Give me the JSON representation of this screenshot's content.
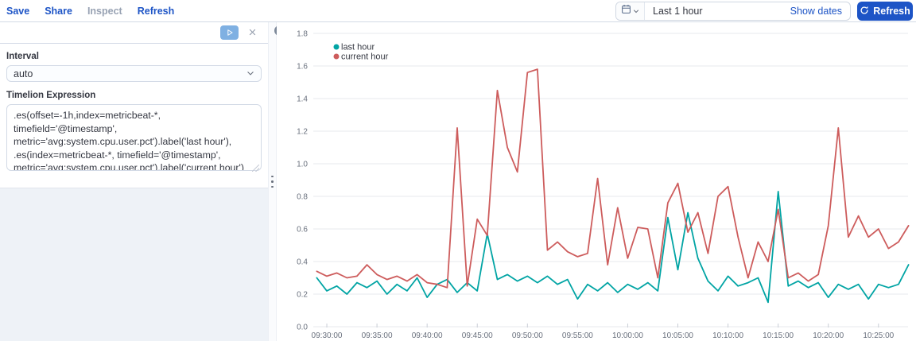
{
  "top_bar": {
    "menu": [
      {
        "label": "Save"
      },
      {
        "label": "Share"
      },
      {
        "label": "Inspect"
      },
      {
        "label": "Refresh"
      }
    ],
    "time_picker": {
      "selected": "Last 1 hour",
      "show_dates_label": "Show dates",
      "refresh_label": "Refresh"
    }
  },
  "editor_panel": {
    "interval_label": "Interval",
    "interval_value": "auto",
    "expression_label": "Timelion Expression",
    "expression_value": ".es(offset=-1h,index=metricbeat-*, timefield='@timestamp',\nmetric='avg:system.cpu.user.pct').label('last hour'),\n.es(index=metricbeat-*, timefield='@timestamp',\nmetric='avg:system.cpu.user.pct').label('current hour')"
  },
  "colors": {
    "accent_blue": "#1d54c6",
    "series_teal": "#01a4a4",
    "series_red": "#cd5c5c",
    "grid": "#e7e9ed"
  },
  "chart_data": {
    "type": "line",
    "title": "",
    "xlabel": "",
    "ylabel": "",
    "ylim": [
      0,
      1.8
    ],
    "y_ticks": [
      0.0,
      0.2,
      0.4,
      0.6,
      0.8,
      1.0,
      1.2,
      1.4,
      1.6,
      1.8
    ],
    "grid": "horizontal",
    "legend_position": "top-left",
    "x": [
      "09:29:00",
      "09:30:00",
      "09:31:00",
      "09:32:00",
      "09:33:00",
      "09:34:00",
      "09:35:00",
      "09:36:00",
      "09:37:00",
      "09:38:00",
      "09:39:00",
      "09:40:00",
      "09:41:00",
      "09:42:00",
      "09:43:00",
      "09:44:00",
      "09:45:00",
      "09:46:00",
      "09:47:00",
      "09:48:00",
      "09:49:00",
      "09:50:00",
      "09:51:00",
      "09:52:00",
      "09:53:00",
      "09:54:00",
      "09:55:00",
      "09:56:00",
      "09:57:00",
      "09:58:00",
      "09:59:00",
      "10:00:00",
      "10:01:00",
      "10:02:00",
      "10:03:00",
      "10:04:00",
      "10:05:00",
      "10:06:00",
      "10:07:00",
      "10:08:00",
      "10:09:00",
      "10:10:00",
      "10:11:00",
      "10:12:00",
      "10:13:00",
      "10:14:00",
      "10:15:00",
      "10:16:00",
      "10:17:00",
      "10:18:00",
      "10:19:00",
      "10:20:00",
      "10:21:00",
      "10:22:00",
      "10:23:00",
      "10:24:00",
      "10:25:00",
      "10:26:00",
      "10:27:00",
      "10:28:00"
    ],
    "x_tick_labels": [
      "09:30:00",
      "09:35:00",
      "09:40:00",
      "09:45:00",
      "09:50:00",
      "09:55:00",
      "10:00:00",
      "10:05:00",
      "10:10:00",
      "10:15:00",
      "10:20:00",
      "10:25:00"
    ],
    "series": [
      {
        "name": "last hour",
        "color": "#01a4a4",
        "values": [
          0.3,
          0.22,
          0.25,
          0.2,
          0.27,
          0.24,
          0.28,
          0.2,
          0.26,
          0.22,
          0.3,
          0.18,
          0.26,
          0.29,
          0.21,
          0.27,
          0.22,
          0.57,
          0.29,
          0.32,
          0.28,
          0.31,
          0.27,
          0.31,
          0.26,
          0.29,
          0.17,
          0.26,
          0.22,
          0.27,
          0.21,
          0.26,
          0.23,
          0.27,
          0.22,
          0.67,
          0.35,
          0.7,
          0.42,
          0.28,
          0.22,
          0.31,
          0.25,
          0.27,
          0.3,
          0.15,
          0.83,
          0.25,
          0.28,
          0.24,
          0.27,
          0.18,
          0.26,
          0.23,
          0.26,
          0.17,
          0.26,
          0.24,
          0.26,
          0.38
        ]
      },
      {
        "name": "current hour",
        "color": "#cd5c5c",
        "values": [
          0.34,
          0.31,
          0.33,
          0.3,
          0.31,
          0.38,
          0.32,
          0.29,
          0.31,
          0.28,
          0.32,
          0.27,
          0.26,
          0.24,
          1.22,
          0.25,
          0.66,
          0.56,
          1.45,
          1.1,
          0.95,
          1.56,
          1.58,
          0.47,
          0.52,
          0.46,
          0.43,
          0.45,
          0.91,
          0.38,
          0.73,
          0.42,
          0.61,
          0.6,
          0.3,
          0.76,
          0.88,
          0.58,
          0.7,
          0.45,
          0.8,
          0.86,
          0.55,
          0.3,
          0.52,
          0.4,
          0.72,
          0.3,
          0.33,
          0.28,
          0.32,
          0.62,
          1.22,
          0.55,
          0.68,
          0.55,
          0.6,
          0.48,
          0.52,
          0.62
        ]
      }
    ]
  }
}
